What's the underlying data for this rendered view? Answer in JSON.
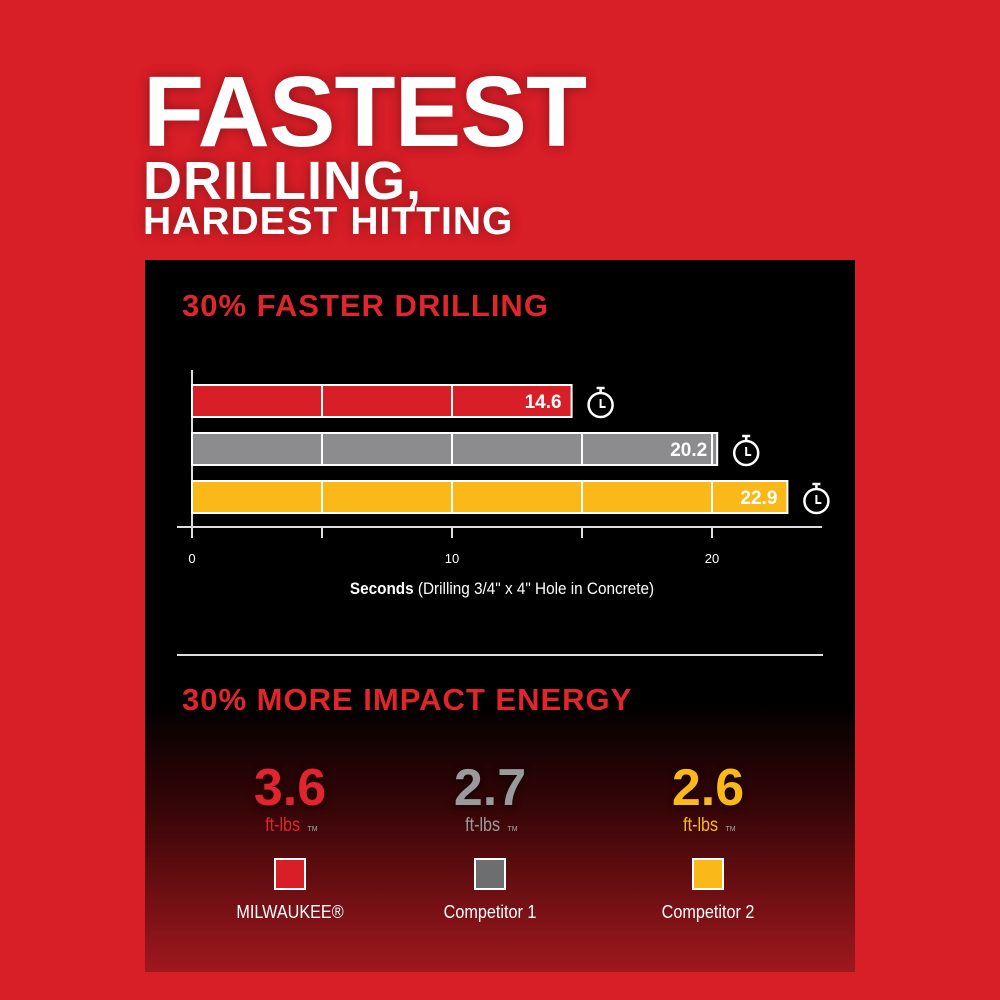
{
  "title": {
    "line1": "FASTEST",
    "line2": "DRILLING,",
    "line3": "HARDEST HITTING"
  },
  "section1_heading": "30% FASTER DRILLING",
  "section2_heading": "30% MORE IMPACT ENERGY",
  "colors": {
    "milwaukee": "#d81e27",
    "competitor1": "#8c8c8e",
    "competitor2": "#fbb819",
    "background": "#d81e27",
    "panel": "#000000"
  },
  "chart_data": {
    "type": "bar",
    "orientation": "horizontal",
    "categories": [
      "MILWAUKEE®",
      "Competitor 1",
      "Competitor 2"
    ],
    "values": [
      14.6,
      20.2,
      22.9
    ],
    "value_labels": [
      "14.6",
      "20.2",
      "22.9"
    ],
    "xlabel_bold": "Seconds",
    "xlabel_rest": " (Drilling 3/4\" x 4\" Hole in Concrete)",
    "xticks": [
      0,
      10,
      20
    ],
    "xtick_labels": [
      "0",
      "10",
      "20"
    ],
    "minor_ticks": [
      5,
      15
    ],
    "xlim": [
      0,
      24.5
    ],
    "grid": true,
    "bar_end_icon": "stopwatch-icon"
  },
  "impact": [
    {
      "value": "3.6",
      "unit": "ft-lbs",
      "tm": "TM",
      "label": "MILWAUKEE®",
      "color": "#e0252c",
      "swatch": "#d81e27"
    },
    {
      "value": "2.7",
      "unit": "ft-lbs",
      "tm": "TM",
      "label": "Competitor 1",
      "color": "#9a9a9c",
      "swatch": "#6d6e70"
    },
    {
      "value": "2.6",
      "unit": "ft-lbs",
      "tm": "TM",
      "label": "Competitor 2",
      "color": "#fbb819",
      "swatch": "#fbb819"
    }
  ]
}
